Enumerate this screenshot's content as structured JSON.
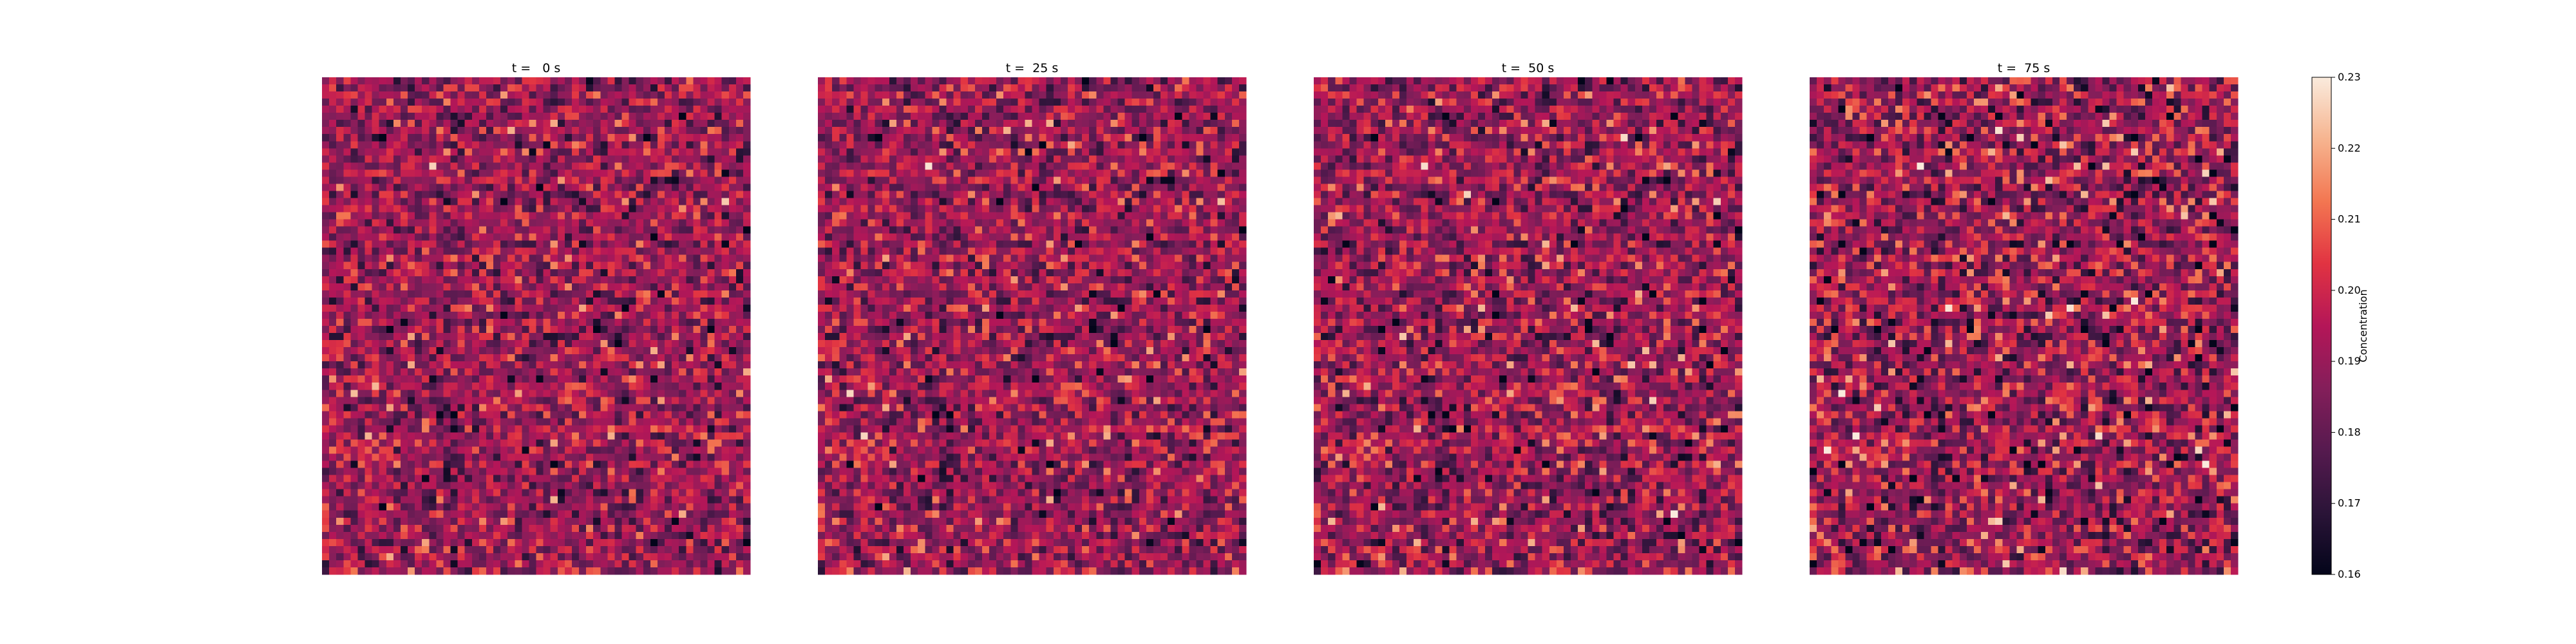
{
  "chart_data": {
    "type": "heatmap",
    "grid": false,
    "legend": "colorbar-right",
    "panels": [
      {
        "title": "t =   0 s"
      },
      {
        "title": "t =  25 s"
      },
      {
        "title": "t =  50 s"
      },
      {
        "title": "t =  75 s"
      }
    ],
    "heatmap_size": {
      "rows": 70,
      "cols": 60
    },
    "value_range": [
      0.16,
      0.23
    ],
    "value_distribution": {
      "mean": 0.19,
      "std": 0.011
    },
    "colorbar": {
      "label": "Concentration",
      "ticks": [
        "0.16",
        "0.17",
        "0.18",
        "0.19",
        "0.20",
        "0.21",
        "0.22",
        "0.23"
      ],
      "tick_values": [
        0.16,
        0.17,
        0.18,
        0.19,
        0.2,
        0.21,
        0.22,
        0.23
      ],
      "colormap": "rocket",
      "color_stops": [
        "#03051a",
        "#2b1438",
        "#561a4f",
        "#841e5a",
        "#b41658",
        "#e13342",
        "#f37651",
        "#f6b48f",
        "#faebdd"
      ]
    }
  }
}
